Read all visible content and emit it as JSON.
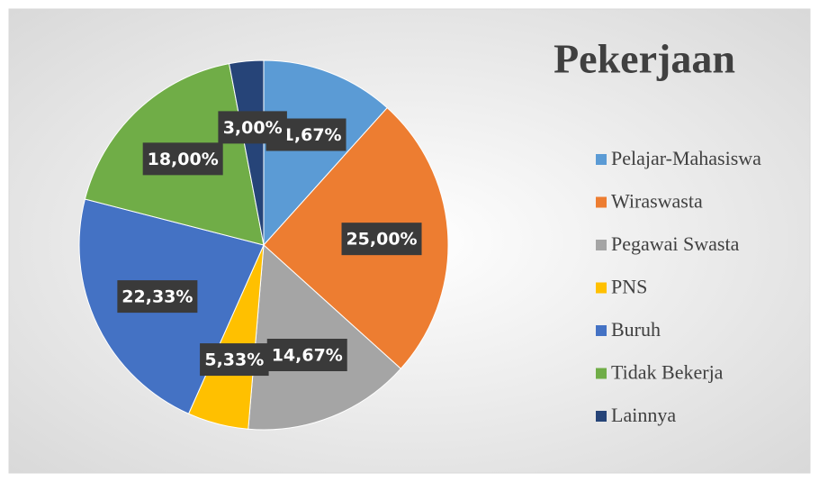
{
  "chart_data": {
    "type": "pie",
    "title": "Pekerjaan",
    "categories": [
      "Pelajar-Mahasiswa",
      "Wiraswasta",
      "Pegawai Swasta",
      "PNS",
      "Buruh",
      "Tidak Bekerja",
      "Lainnya"
    ],
    "values": [
      11.67,
      25.0,
      14.67,
      5.33,
      22.33,
      18.0,
      3.0
    ],
    "value_labels": [
      "11,67%",
      "25,00%",
      "14,67%",
      "5,33%",
      "22,33%",
      "18,00%",
      "3,00%"
    ],
    "colors": [
      "#5b9bd5",
      "#ed7d31",
      "#a5a5a5",
      "#ffc000",
      "#4472c4",
      "#70ad47",
      "#264478"
    ],
    "legend": "right"
  }
}
